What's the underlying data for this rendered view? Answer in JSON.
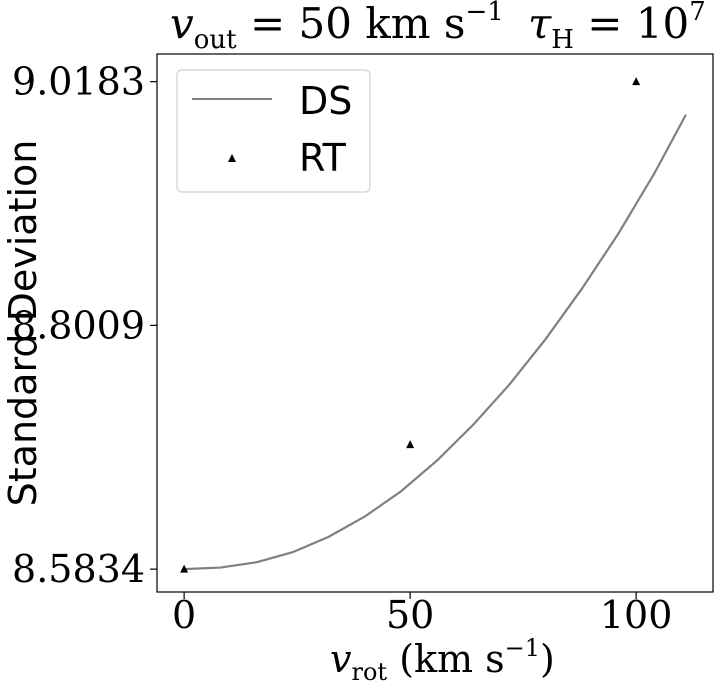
{
  "chart_data": {
    "type": "line",
    "title": {
      "left": {
        "var": "v",
        "sub": "out",
        "rest": " = 50 km s",
        "sup": "−1"
      },
      "right": {
        "var": "τ",
        "sub": "H",
        "rest": " = 10",
        "sup": "7"
      }
    },
    "xlabel": {
      "var": "v",
      "sub": "rot",
      "rest": " (km s",
      "sup": "−1",
      "close": ")"
    },
    "ylabel": "Standard Deviation",
    "xlim": [
      -6,
      117
    ],
    "ylim": [
      8.563,
      9.043
    ],
    "xticks": [
      0,
      50,
      100
    ],
    "yticks": [
      8.5834,
      8.8009,
      9.0183
    ],
    "ytick_labels": [
      "8.5834",
      "8.8009",
      "9.0183"
    ],
    "grid": false,
    "legend": {
      "position": "top-left",
      "entries": [
        "DS",
        "RT"
      ]
    },
    "series": [
      {
        "name": "DS",
        "style": "line",
        "color": "#808080",
        "x": [
          0,
          8,
          16,
          24,
          32,
          40,
          48,
          56,
          64,
          72,
          80,
          88,
          96,
          104,
          111
        ],
        "y": [
          8.5834,
          8.5848,
          8.5895,
          8.5985,
          8.6123,
          8.6304,
          8.6529,
          8.6805,
          8.7124,
          8.7483,
          8.7888,
          8.8336,
          8.8823,
          8.9363,
          8.9888
        ]
      },
      {
        "name": "RT",
        "style": "marker",
        "marker": "triangle",
        "color": "#000000",
        "x": [
          0,
          50,
          100
        ],
        "y": [
          8.5834,
          8.6945,
          9.0183
        ]
      }
    ]
  }
}
